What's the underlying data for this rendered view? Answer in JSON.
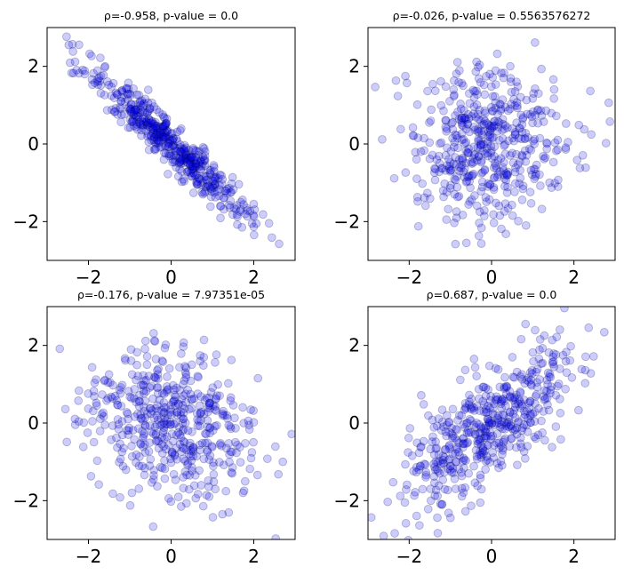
{
  "chart_data": [
    {
      "type": "scatter",
      "title": "ρ=-0.958, p-value = 0.0",
      "correlation": -0.958,
      "n_points": 500,
      "xlim": [
        -3,
        3
      ],
      "ylim": [
        -3,
        3
      ],
      "xticks": [
        -2,
        0,
        2
      ],
      "yticks": [
        -2,
        0,
        2
      ],
      "marker_color": "#0000ff",
      "marker_alpha": 0.2,
      "grid": false
    },
    {
      "type": "scatter",
      "title": "ρ=-0.026, p-value = 0.5563576272",
      "correlation": -0.026,
      "n_points": 500,
      "xlim": [
        -3,
        3
      ],
      "ylim": [
        -3,
        3
      ],
      "xticks": [
        -2,
        0,
        2
      ],
      "yticks": [
        -2,
        0,
        2
      ],
      "marker_color": "#0000ff",
      "marker_alpha": 0.2,
      "grid": false
    },
    {
      "type": "scatter",
      "title": "ρ=-0.176, p-value = 7.97351e-05",
      "correlation": -0.176,
      "n_points": 500,
      "xlim": [
        -3,
        3
      ],
      "ylim": [
        -3,
        3
      ],
      "xticks": [
        -2,
        0,
        2
      ],
      "yticks": [
        -2,
        0,
        2
      ],
      "marker_color": "#0000ff",
      "marker_alpha": 0.2,
      "grid": false
    },
    {
      "type": "scatter",
      "title": "ρ=0.687, p-value = 0.0",
      "correlation": 0.687,
      "n_points": 500,
      "xlim": [
        -3,
        3
      ],
      "ylim": [
        -3,
        3
      ],
      "xticks": [
        -2,
        0,
        2
      ],
      "yticks": [
        -2,
        0,
        2
      ],
      "marker_color": "#0000ff",
      "marker_alpha": 0.2,
      "grid": false
    }
  ]
}
